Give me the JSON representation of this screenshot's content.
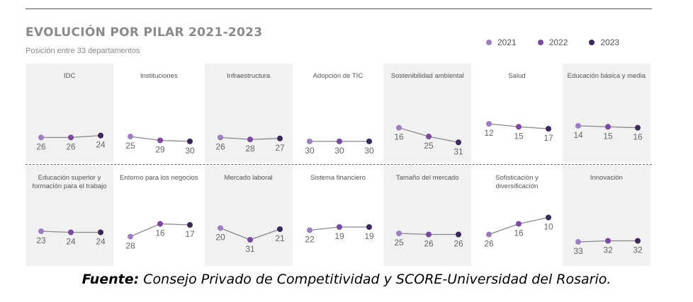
{
  "title": "EVOLUCIÓN POR PILAR 2021-2023",
  "subtitle": "Posición entre 33 departamentos",
  "source_label": "Fuente:",
  "source_text": " Consejo Privado de Competitividad y SCORE-Universidad del Rosario.",
  "colors": {
    "2021": "#9b7fc0",
    "2022": "#7a4a9e",
    "2023": "#3a2a5a",
    "line": "#888888",
    "label": "#666666"
  },
  "chart_data": {
    "type": "line",
    "x": [
      "2021",
      "2022",
      "2023"
    ],
    "legend": [
      "2021",
      "2022",
      "2023"
    ],
    "legend_position": "top-right",
    "ylim": [
      33,
      1
    ],
    "panels": [
      {
        "name": "IDC",
        "values": [
          26,
          26,
          24
        ]
      },
      {
        "name": "Instituciones",
        "values": [
          25,
          29,
          30
        ]
      },
      {
        "name": "Infraestructura",
        "values": [
          26,
          28,
          27
        ]
      },
      {
        "name": "Adopción de TIC",
        "values": [
          30,
          30,
          30
        ]
      },
      {
        "name": "Sostenibilidad ambiental",
        "values": [
          16,
          25,
          31
        ]
      },
      {
        "name": "Salud",
        "values": [
          12,
          15,
          17
        ]
      },
      {
        "name": "Educación básica y media",
        "values": [
          14,
          15,
          16
        ]
      },
      {
        "name": "Educación superior y formación para el trabajo",
        "values": [
          23,
          24,
          24
        ]
      },
      {
        "name": "Entorno para los negocios",
        "values": [
          28,
          16,
          17
        ]
      },
      {
        "name": "Mercado laboral",
        "values": [
          20,
          31,
          21
        ]
      },
      {
        "name": "Sistema financiero",
        "values": [
          22,
          19,
          19
        ]
      },
      {
        "name": "Tamaño del mercado",
        "values": [
          25,
          26,
          26
        ]
      },
      {
        "name": "Sofisticación y diversificación",
        "values": [
          26,
          16,
          10
        ]
      },
      {
        "name": "Innovación",
        "values": [
          33,
          32,
          32
        ]
      }
    ]
  }
}
